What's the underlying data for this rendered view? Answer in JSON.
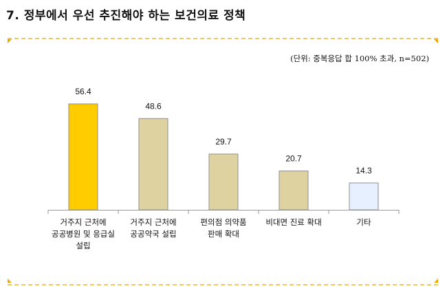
{
  "title": "7. 정부에서 우선 추진해야 하는 보건의료 정책",
  "unit_note": "(단위: 중복응답 합 100% 초과, n=502)",
  "colors": {
    "highlight": "#ffcc00",
    "default": "#ded3a0",
    "other": "#e6f0ff",
    "frame": "#f0c860",
    "corner": "#f0a500"
  },
  "chart_data": {
    "type": "bar",
    "title": "7. 정부에서 우선 추진해야 하는 보건의료 정책",
    "xlabel": "",
    "ylabel": "",
    "categories": [
      "거주지 근처에\n공공병원 및 응급실\n설립",
      "거주지 근처에\n공공약국 설립",
      "편의점 의약품\n판매 확대",
      "비대면 진료 확대",
      "기타"
    ],
    "values": [
      56.4,
      48.6,
      29.7,
      20.7,
      14.3
    ],
    "bar_colors": [
      "#ffcc00",
      "#ded3a0",
      "#ded3a0",
      "#ded3a0",
      "#e6f0ff"
    ],
    "ylim": [
      0,
      70
    ],
    "grid": false,
    "legend": "none",
    "data_labels": true
  }
}
